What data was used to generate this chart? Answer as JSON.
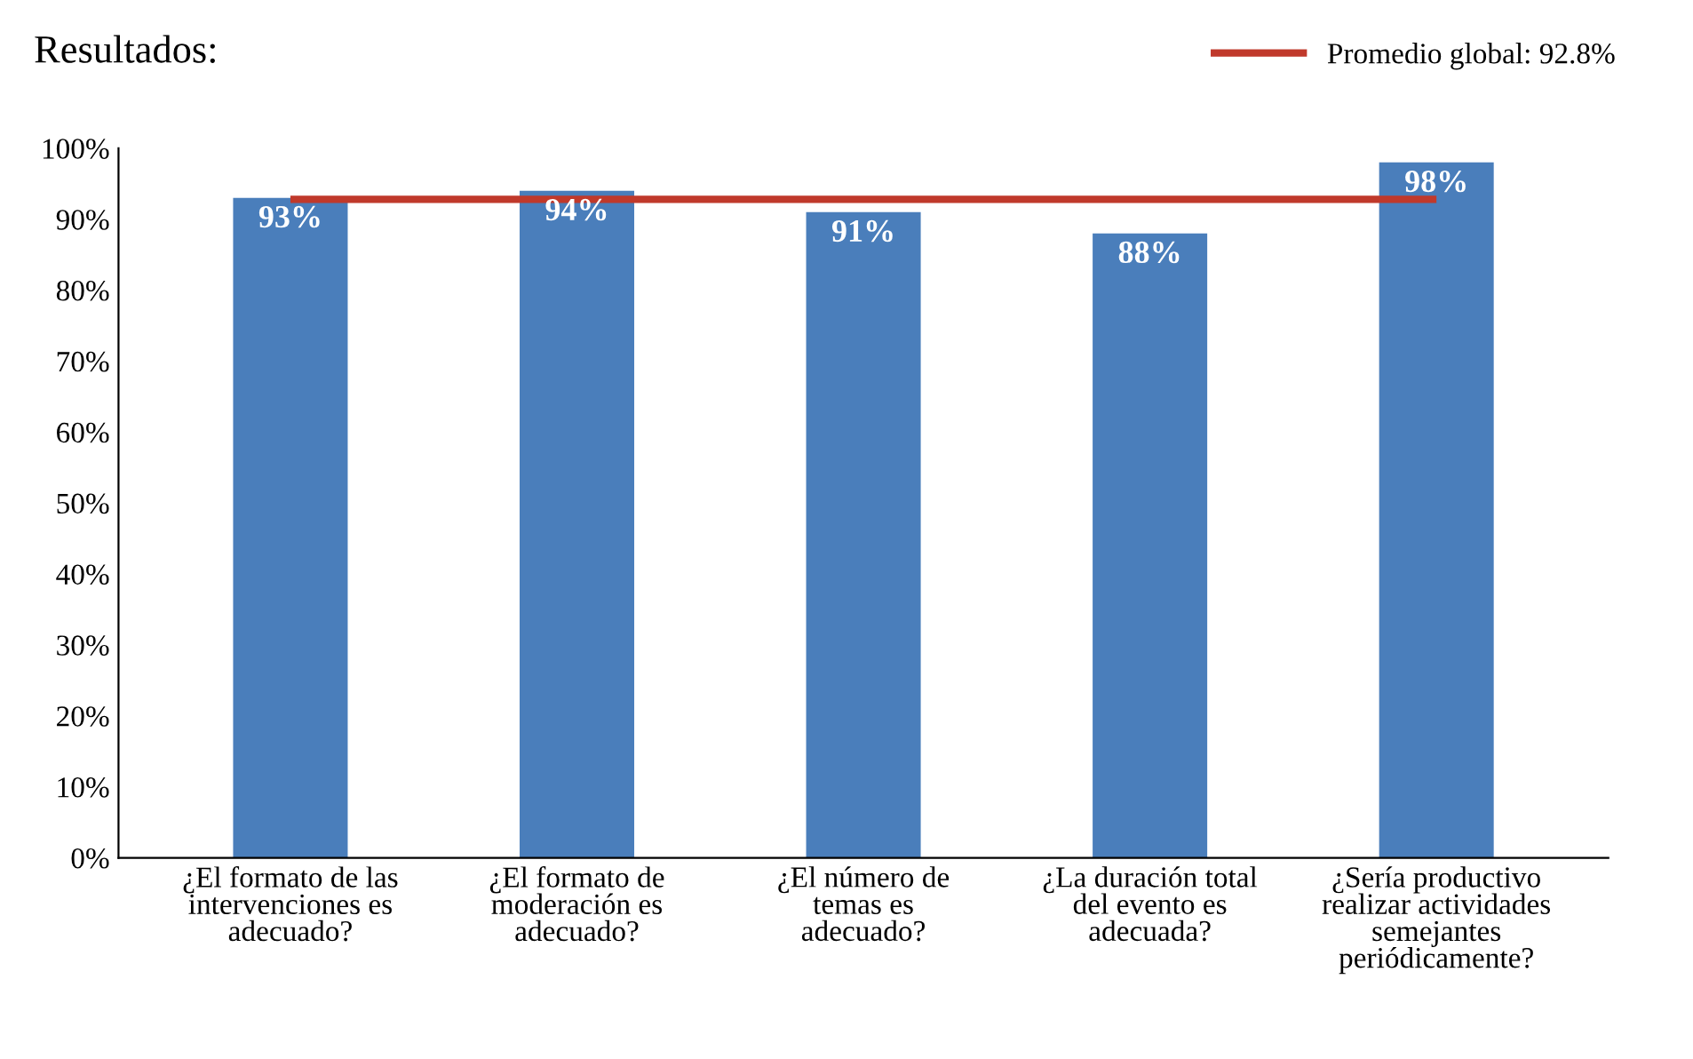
{
  "chart_data": {
    "type": "bar",
    "title": "Resultados:",
    "categories": [
      "¿El formato de las\nintervenciones es\nadecuado?",
      "¿El formato de\nmoderación es\nadecuado?",
      "¿El número de\ntemas es\nadecuado?",
      "¿La duración total\ndel evento es\nadecuada?",
      "¿Sería productivo\nrealizar actividades\nsemejantes\nperiódicamente?"
    ],
    "values": [
      93,
      94,
      91,
      88,
      98
    ],
    "value_labels": [
      "93%",
      "94%",
      "91%",
      "88%",
      "98%"
    ],
    "color": "#4a7ebb",
    "ylim": [
      0,
      100
    ],
    "yticks": [
      {
        "value": 0,
        "label": "0%"
      },
      {
        "value": 10,
        "label": "10%"
      },
      {
        "value": 20,
        "label": "20%"
      },
      {
        "value": 30,
        "label": "30%"
      },
      {
        "value": 40,
        "label": "40%"
      },
      {
        "value": 50,
        "label": "50%"
      },
      {
        "value": 60,
        "label": "60%"
      },
      {
        "value": 70,
        "label": "70%"
      },
      {
        "value": 80,
        "label": "80%"
      },
      {
        "value": 90,
        "label": "90%"
      },
      {
        "value": 100,
        "label": "100%"
      }
    ],
    "ref_lines": [
      {
        "axis": "y",
        "value": 92.8,
        "label": "Promedio global: 92.8%",
        "color": "#c0392b"
      }
    ],
    "legend": "top right",
    "grid": false
  }
}
